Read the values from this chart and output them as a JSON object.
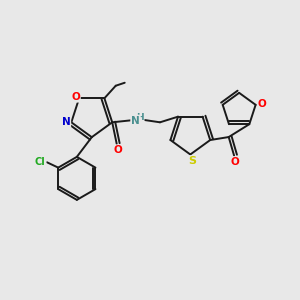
{
  "bg_color": "#e8e8e8",
  "bond_color": "#1a1a1a",
  "figsize": [
    3.0,
    3.0
  ],
  "dpi": 100,
  "colors": {
    "O": "#ff0000",
    "N": "#0000cc",
    "S": "#cccc00",
    "Cl": "#22aa22",
    "NH": "#4a9090",
    "C": "#1a1a1a"
  }
}
